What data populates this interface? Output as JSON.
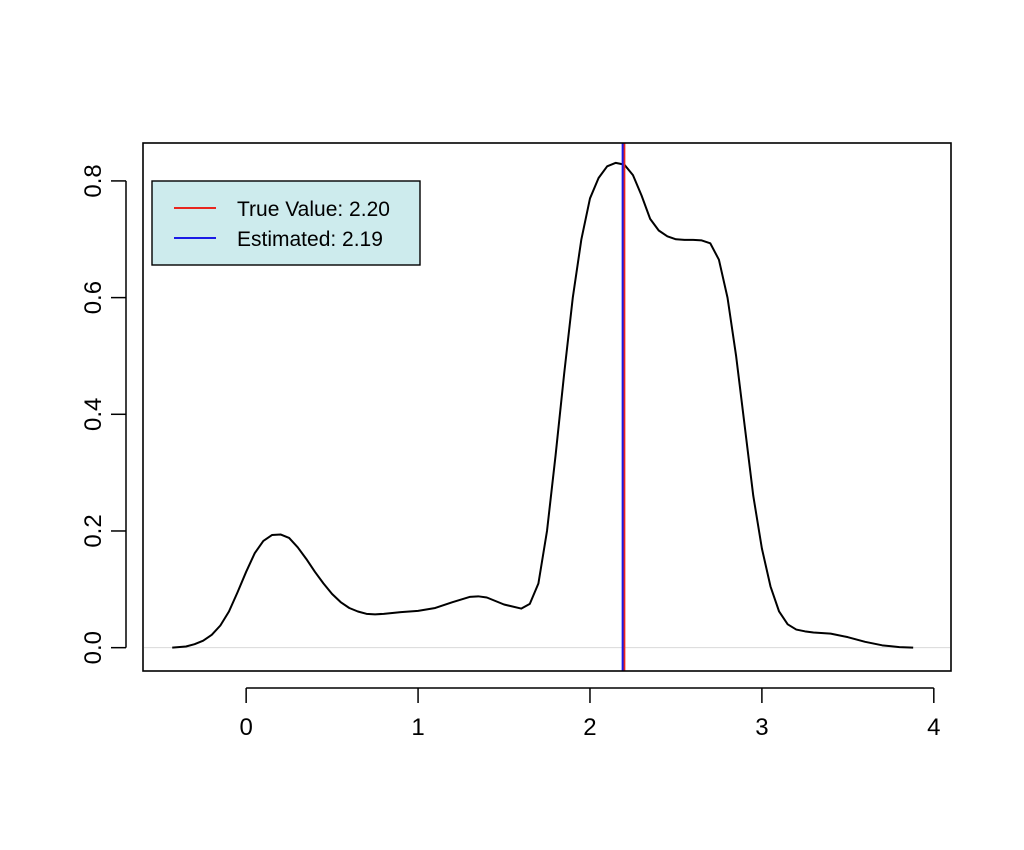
{
  "chart_data": {
    "type": "line",
    "title": "",
    "xlabel": "",
    "ylabel": "",
    "xlim": [
      -0.6,
      4.1
    ],
    "ylim": [
      -0.04,
      0.865
    ],
    "xticks": [
      0,
      1,
      2,
      3,
      4
    ],
    "xtick_labels": [
      "0",
      "1",
      "2",
      "3",
      "4"
    ],
    "yticks": [
      0.0,
      0.2,
      0.4,
      0.6,
      0.8
    ],
    "ytick_labels": [
      "0.0",
      "0.2",
      "0.4",
      "0.6",
      "0.8"
    ],
    "grid": false,
    "legend": {
      "position": "top-left",
      "background": "#cdebed",
      "entries": [
        {
          "label": "True Value: 2.20",
          "color": "#e8261f"
        },
        {
          "label": "Estimated: 2.19",
          "color": "#1a1ae6"
        }
      ]
    },
    "series": [
      {
        "color": "#000000",
        "x": [
          -0.43,
          -0.35,
          -0.3,
          -0.25,
          -0.2,
          -0.15,
          -0.1,
          -0.05,
          0.0,
          0.05,
          0.1,
          0.15,
          0.2,
          0.25,
          0.3,
          0.35,
          0.4,
          0.45,
          0.5,
          0.55,
          0.6,
          0.65,
          0.7,
          0.75,
          0.8,
          0.9,
          1.0,
          1.1,
          1.2,
          1.3,
          1.35,
          1.4,
          1.5,
          1.6,
          1.65,
          1.7,
          1.75,
          1.8,
          1.85,
          1.9,
          1.95,
          2.0,
          2.05,
          2.1,
          2.15,
          2.2,
          2.25,
          2.3,
          2.35,
          2.4,
          2.45,
          2.5,
          2.55,
          2.6,
          2.65,
          2.7,
          2.75,
          2.8,
          2.85,
          2.9,
          2.95,
          3.0,
          3.05,
          3.1,
          3.15,
          3.2,
          3.25,
          3.3,
          3.4,
          3.5,
          3.6,
          3.7,
          3.8,
          3.88
        ],
        "y": [
          0.0,
          0.002,
          0.006,
          0.012,
          0.022,
          0.038,
          0.062,
          0.095,
          0.13,
          0.162,
          0.183,
          0.193,
          0.194,
          0.188,
          0.172,
          0.152,
          0.13,
          0.11,
          0.092,
          0.078,
          0.068,
          0.062,
          0.058,
          0.057,
          0.058,
          0.061,
          0.063,
          0.068,
          0.078,
          0.087,
          0.088,
          0.086,
          0.074,
          0.067,
          0.075,
          0.11,
          0.2,
          0.33,
          0.47,
          0.6,
          0.7,
          0.77,
          0.805,
          0.825,
          0.831,
          0.828,
          0.81,
          0.775,
          0.735,
          0.715,
          0.705,
          0.7,
          0.699,
          0.699,
          0.698,
          0.693,
          0.665,
          0.6,
          0.5,
          0.38,
          0.26,
          0.17,
          0.105,
          0.062,
          0.04,
          0.031,
          0.028,
          0.026,
          0.024,
          0.018,
          0.01,
          0.004,
          0.001,
          0.0
        ]
      }
    ],
    "vlines": [
      {
        "x": 2.2,
        "color": "#e8261f"
      },
      {
        "x": 2.19,
        "color": "#1a1ae6"
      }
    ],
    "hline": {
      "y": 0.0,
      "color": "#d9d9d9"
    }
  }
}
